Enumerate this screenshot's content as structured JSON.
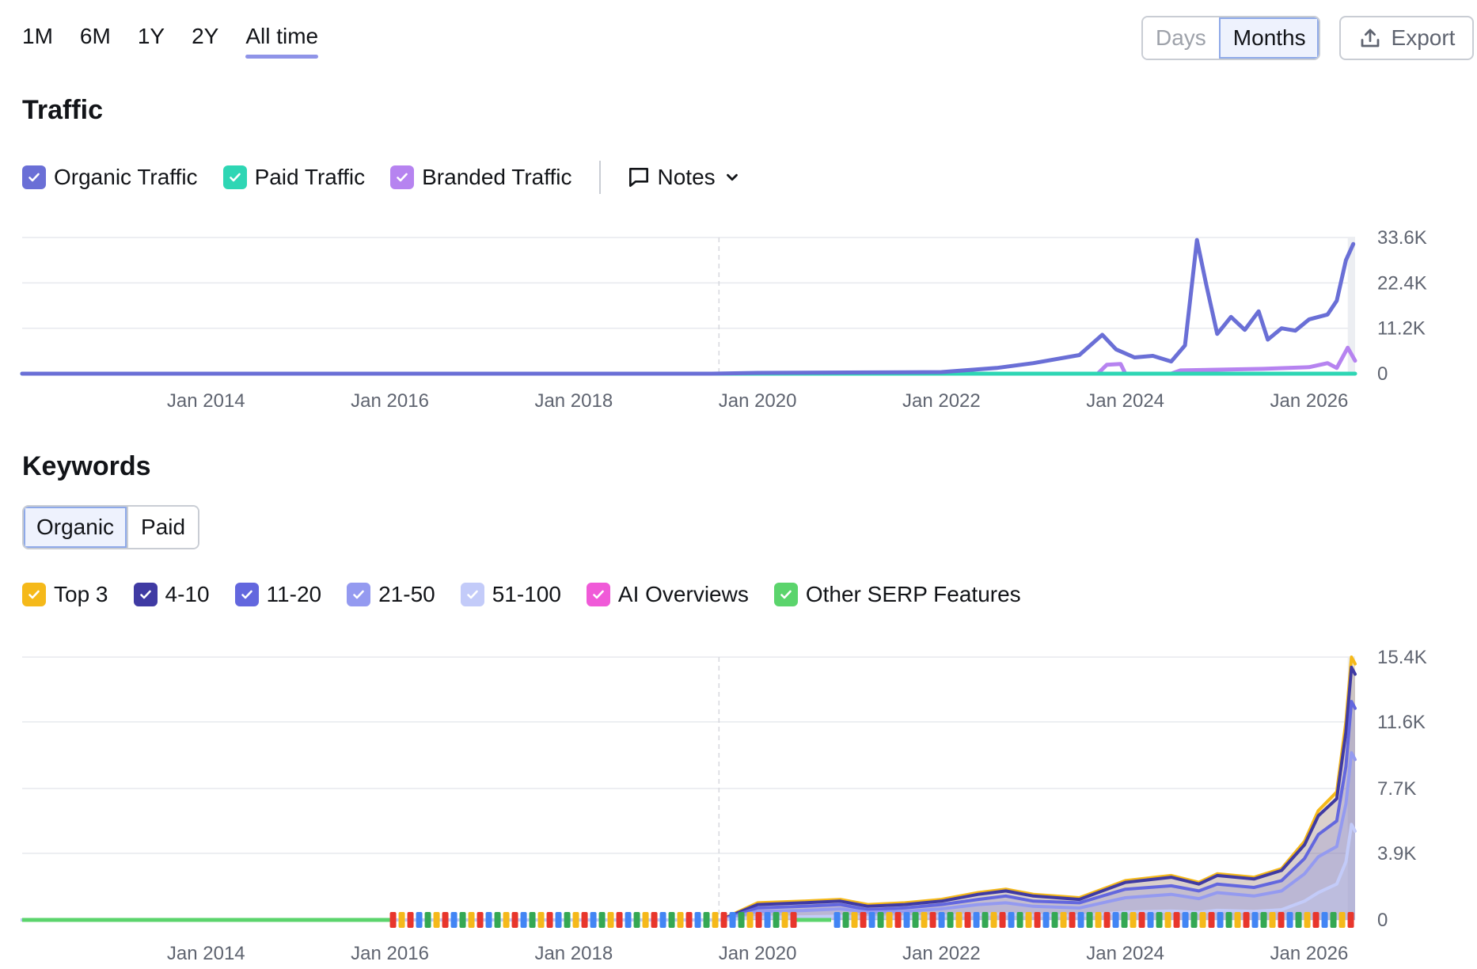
{
  "range_tabs": [
    "1M",
    "6M",
    "1Y",
    "2Y",
    "All time"
  ],
  "range_active": "All time",
  "granularity": {
    "days_label": "Days",
    "months_label": "Months",
    "active": "Months"
  },
  "export_label": "Export",
  "traffic": {
    "title": "Traffic"
  },
  "traffic_legend": [
    {
      "label": "Organic Traffic",
      "color": "#6a6fd6"
    },
    {
      "label": "Paid Traffic",
      "color": "#2ed6b4"
    },
    {
      "label": "Branded Traffic",
      "color": "#b683f0"
    }
  ],
  "notes_label": "Notes",
  "keywords": {
    "title": "Keywords",
    "tab_organic": "Organic",
    "tab_paid": "Paid",
    "active_tab": "Organic"
  },
  "keywords_legend": [
    {
      "label": "Top 3",
      "color": "#f5b91a"
    },
    {
      "label": "4-10",
      "color": "#3f3aa3"
    },
    {
      "label": "11-20",
      "color": "#6367de"
    },
    {
      "label": "21-50",
      "color": "#949af0"
    },
    {
      "label": "51-100",
      "color": "#c3cbf9"
    },
    {
      "label": "AI Overviews",
      "color": "#f05ad8"
    },
    {
      "label": "Other SERP Features",
      "color": "#5bd46c"
    }
  ],
  "chart_data": [
    {
      "type": "line",
      "title": "Traffic",
      "x_ticks": [
        "Jan 2014",
        "Jan 2016",
        "Jan 2018",
        "Jan 2020",
        "Jan 2022",
        "Jan 2024",
        "Jan 2026"
      ],
      "y_ticks": [
        "33.6K",
        "22.4K",
        "11.2K",
        "0"
      ],
      "ylim": [
        0,
        33600
      ],
      "xlim": [
        2012.0,
        2026.5
      ],
      "grid": true,
      "series": [
        {
          "name": "Organic Traffic",
          "color": "#6a6fd6",
          "points": [
            [
              2012.0,
              0
            ],
            [
              2019.5,
              0
            ],
            [
              2020.0,
              200
            ],
            [
              2021.0,
              300
            ],
            [
              2022.0,
              400
            ],
            [
              2022.6,
              1400
            ],
            [
              2023.0,
              2600
            ],
            [
              2023.5,
              4600
            ],
            [
              2023.75,
              9600
            ],
            [
              2023.9,
              6000
            ],
            [
              2024.1,
              4000
            ],
            [
              2024.3,
              4400
            ],
            [
              2024.5,
              3000
            ],
            [
              2024.65,
              7000
            ],
            [
              2024.78,
              33000
            ],
            [
              2024.88,
              22000
            ],
            [
              2025.0,
              9800
            ],
            [
              2025.15,
              14000
            ],
            [
              2025.3,
              10800
            ],
            [
              2025.45,
              15400
            ],
            [
              2025.55,
              8400
            ],
            [
              2025.7,
              11200
            ],
            [
              2025.85,
              10600
            ],
            [
              2026.0,
              13400
            ],
            [
              2026.2,
              14600
            ],
            [
              2026.3,
              18000
            ],
            [
              2026.4,
              28000
            ],
            [
              2026.48,
              32000
            ]
          ]
        },
        {
          "name": "Paid Traffic",
          "color": "#2ed6b4",
          "points": [
            [
              2012.0,
              0
            ],
            [
              2026.5,
              0
            ]
          ]
        },
        {
          "name": "Branded Traffic",
          "color": "#b683f0",
          "points": [
            [
              2012.0,
              0
            ],
            [
              2023.7,
              0
            ],
            [
              2023.8,
              2200
            ],
            [
              2023.95,
              2400
            ],
            [
              2024.0,
              0
            ],
            [
              2024.5,
              0
            ],
            [
              2024.6,
              800
            ],
            [
              2025.5,
              1200
            ],
            [
              2026.0,
              1600
            ],
            [
              2026.2,
              2600
            ],
            [
              2026.3,
              1400
            ],
            [
              2026.42,
              6400
            ],
            [
              2026.5,
              3200
            ]
          ]
        }
      ]
    },
    {
      "type": "area",
      "title": "Keywords",
      "x_ticks": [
        "Jan 2014",
        "Jan 2016",
        "Jan 2018",
        "Jan 2020",
        "Jan 2022",
        "Jan 2024",
        "Jan 2026"
      ],
      "y_ticks": [
        "15.4K",
        "11.6K",
        "7.7K",
        "3.9K",
        "0"
      ],
      "ylim": [
        0,
        15400
      ],
      "xlim": [
        2012.0,
        2026.5
      ],
      "grid": true,
      "stacked": true,
      "series": [
        {
          "name": "Top 3",
          "color": "#f5b91a",
          "points": [
            [
              2012.0,
              0
            ],
            [
              2019.6,
              0
            ],
            [
              2020.0,
              1000
            ],
            [
              2020.5,
              1100
            ],
            [
              2020.9,
              1200
            ],
            [
              2021.2,
              900
            ],
            [
              2021.6,
              1000
            ],
            [
              2022.0,
              1200
            ],
            [
              2022.4,
              1600
            ],
            [
              2022.7,
              1800
            ],
            [
              2023.0,
              1500
            ],
            [
              2023.5,
              1300
            ],
            [
              2024.0,
              2300
            ],
            [
              2024.5,
              2600
            ],
            [
              2024.8,
              2200
            ],
            [
              2025.0,
              2700
            ],
            [
              2025.4,
              2500
            ],
            [
              2025.7,
              3000
            ],
            [
              2025.95,
              4600
            ],
            [
              2026.1,
              6400
            ],
            [
              2026.3,
              7500
            ],
            [
              2026.4,
              11600
            ],
            [
              2026.46,
              15400
            ],
            [
              2026.5,
              15000
            ]
          ]
        },
        {
          "name": "4-10",
          "color": "#3f3aa3",
          "points": [
            [
              2012.0,
              0
            ],
            [
              2019.6,
              0
            ],
            [
              2020.0,
              900
            ],
            [
              2020.5,
              1000
            ],
            [
              2020.9,
              1100
            ],
            [
              2021.2,
              800
            ],
            [
              2021.6,
              900
            ],
            [
              2022.0,
              1100
            ],
            [
              2022.4,
              1500
            ],
            [
              2022.7,
              1700
            ],
            [
              2023.0,
              1400
            ],
            [
              2023.5,
              1200
            ],
            [
              2024.0,
              2200
            ],
            [
              2024.5,
              2500
            ],
            [
              2024.8,
              2100
            ],
            [
              2025.0,
              2600
            ],
            [
              2025.4,
              2400
            ],
            [
              2025.7,
              2900
            ],
            [
              2025.95,
              4400
            ],
            [
              2026.1,
              6100
            ],
            [
              2026.3,
              7100
            ],
            [
              2026.4,
              11000
            ],
            [
              2026.46,
              14800
            ],
            [
              2026.5,
              14400
            ]
          ]
        },
        {
          "name": "11-20",
          "color": "#6367de",
          "points": [
            [
              2012.0,
              0
            ],
            [
              2019.6,
              0
            ],
            [
              2020.0,
              700
            ],
            [
              2020.5,
              800
            ],
            [
              2020.9,
              900
            ],
            [
              2021.2,
              600
            ],
            [
              2021.6,
              700
            ],
            [
              2022.0,
              900
            ],
            [
              2022.4,
              1200
            ],
            [
              2022.7,
              1400
            ],
            [
              2023.0,
              1100
            ],
            [
              2023.5,
              1000
            ],
            [
              2024.0,
              1800
            ],
            [
              2024.5,
              2000
            ],
            [
              2024.8,
              1700
            ],
            [
              2025.0,
              2100
            ],
            [
              2025.4,
              1900
            ],
            [
              2025.7,
              2300
            ],
            [
              2025.95,
              3600
            ],
            [
              2026.1,
              5000
            ],
            [
              2026.3,
              5800
            ],
            [
              2026.4,
              9000
            ],
            [
              2026.46,
              12800
            ],
            [
              2026.5,
              12400
            ]
          ]
        },
        {
          "name": "21-50",
          "color": "#949af0",
          "points": [
            [
              2012.0,
              0
            ],
            [
              2019.6,
              0
            ],
            [
              2020.0,
              500
            ],
            [
              2020.5,
              550
            ],
            [
              2020.9,
              650
            ],
            [
              2021.2,
              450
            ],
            [
              2021.6,
              500
            ],
            [
              2022.0,
              650
            ],
            [
              2022.4,
              900
            ],
            [
              2022.7,
              1000
            ],
            [
              2023.0,
              800
            ],
            [
              2023.5,
              700
            ],
            [
              2024.0,
              1300
            ],
            [
              2024.5,
              1500
            ],
            [
              2024.8,
              1250
            ],
            [
              2025.0,
              1600
            ],
            [
              2025.4,
              1400
            ],
            [
              2025.7,
              1700
            ],
            [
              2025.95,
              2700
            ],
            [
              2026.1,
              3700
            ],
            [
              2026.3,
              4300
            ],
            [
              2026.4,
              6800
            ],
            [
              2026.46,
              9800
            ],
            [
              2026.5,
              9400
            ]
          ]
        },
        {
          "name": "51-100",
          "color": "#c3cbf9",
          "points": [
            [
              2012.0,
              0
            ],
            [
              2019.6,
              0
            ],
            [
              2020.0,
              150
            ],
            [
              2020.5,
              180
            ],
            [
              2020.9,
              220
            ],
            [
              2021.2,
              150
            ],
            [
              2021.6,
              170
            ],
            [
              2022.0,
              230
            ],
            [
              2022.4,
              320
            ],
            [
              2022.7,
              360
            ],
            [
              2023.0,
              280
            ],
            [
              2023.5,
              250
            ],
            [
              2024.0,
              450
            ],
            [
              2024.5,
              520
            ],
            [
              2024.8,
              440
            ],
            [
              2025.0,
              560
            ],
            [
              2025.4,
              500
            ],
            [
              2025.7,
              600
            ],
            [
              2025.95,
              1100
            ],
            [
              2026.1,
              1600
            ],
            [
              2026.3,
              2100
            ],
            [
              2026.4,
              3400
            ],
            [
              2026.46,
              5600
            ],
            [
              2026.5,
              5200
            ]
          ]
        }
      ]
    }
  ]
}
